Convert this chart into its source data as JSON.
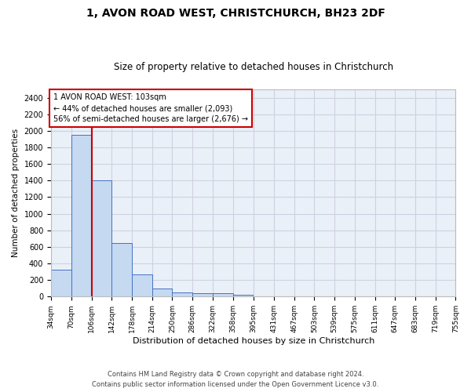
{
  "title1": "1, AVON ROAD WEST, CHRISTCHURCH, BH23 2DF",
  "title2": "Size of property relative to detached houses in Christchurch",
  "xlabel": "Distribution of detached houses by size in Christchurch",
  "ylabel": "Number of detached properties",
  "footer1": "Contains HM Land Registry data © Crown copyright and database right 2024.",
  "footer2": "Contains public sector information licensed under the Open Government Licence v3.0.",
  "annotation_line1": "1 AVON ROAD WEST: 103sqm",
  "annotation_line2": "← 44% of detached houses are smaller (2,093)",
  "annotation_line3": "56% of semi-detached houses are larger (2,676) →",
  "bar_left_edges": [
    34,
    70,
    106,
    142,
    178,
    214,
    250,
    286,
    322,
    358,
    395,
    431,
    467,
    503,
    539,
    575,
    611,
    647,
    683,
    719
  ],
  "bar_heights": [
    325,
    1950,
    1400,
    645,
    270,
    100,
    48,
    42,
    38,
    22,
    0,
    0,
    0,
    0,
    0,
    0,
    0,
    0,
    0,
    0
  ],
  "bin_width": 36,
  "bar_color": "#c5d9f1",
  "bar_edge_color": "#4472c4",
  "red_line_x": 106,
  "ylim": [
    0,
    2500
  ],
  "yticks": [
    0,
    200,
    400,
    600,
    800,
    1000,
    1200,
    1400,
    1600,
    1800,
    2000,
    2200,
    2400
  ],
  "xlim": [
    34,
    755
  ],
  "xtick_labels": [
    "34sqm",
    "70sqm",
    "106sqm",
    "142sqm",
    "178sqm",
    "214sqm",
    "250sqm",
    "286sqm",
    "322sqm",
    "358sqm",
    "395sqm",
    "431sqm",
    "467sqm",
    "503sqm",
    "539sqm",
    "575sqm",
    "611sqm",
    "647sqm",
    "683sqm",
    "719sqm",
    "755sqm"
  ],
  "grid_color": "#d0d0e0",
  "background_color": "#eaf0f8",
  "annotation_box_color": "#ffffff",
  "annotation_border_color": "#cc0000",
  "title1_fontsize": 10,
  "title2_fontsize": 8.5
}
